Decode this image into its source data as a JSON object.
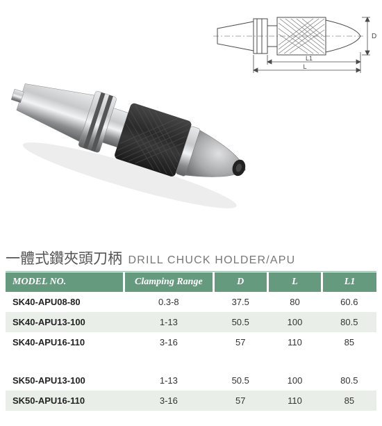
{
  "title": {
    "cn": "一體式鑽夾頭刀柄",
    "en": "DRILL CHUCK HOLDER/APU"
  },
  "diagram": {
    "labels": {
      "D": "D",
      "L": "L",
      "L1": "L1"
    },
    "stroke": "#4a4a4a",
    "fill": "#ffffff",
    "hatch": "#6a6a6a"
  },
  "photo": {
    "body_metal": "#c8c9cb",
    "body_metal_light": "#e8e9eb",
    "body_metal_dark": "#7a7b7d",
    "knurl": "#2a2a2a",
    "knurl_light": "#454545",
    "shadow": "#d8d8d8"
  },
  "table": {
    "header_bg": "#659a7f",
    "header_fg": "#ffffff",
    "row_even_bg": "#e9efe8",
    "row_odd_bg": "#ffffff",
    "columns": [
      {
        "key": "model",
        "label": "MODEL NO."
      },
      {
        "key": "clamp",
        "label": "Clamping Range"
      },
      {
        "key": "d",
        "label": "D"
      },
      {
        "key": "l",
        "label": "L"
      },
      {
        "key": "l1",
        "label": "L1"
      }
    ],
    "groups": [
      {
        "rows": [
          {
            "model": "SK40-APU08-80",
            "clamp": "0.3-8",
            "d": "37.5",
            "l": "80",
            "l1": "60.6"
          },
          {
            "model": "SK40-APU13-100",
            "clamp": "1-13",
            "d": "50.5",
            "l": "100",
            "l1": "80.5"
          },
          {
            "model": "SK40-APU16-110",
            "clamp": "3-16",
            "d": "57",
            "l": "110",
            "l1": "85"
          }
        ]
      },
      {
        "rows": [
          {
            "model": "SK50-APU13-100",
            "clamp": "1-13",
            "d": "50.5",
            "l": "100",
            "l1": "80.5"
          },
          {
            "model": "SK50-APU16-110",
            "clamp": "3-16",
            "d": "57",
            "l": "110",
            "l1": "85"
          }
        ]
      }
    ]
  }
}
